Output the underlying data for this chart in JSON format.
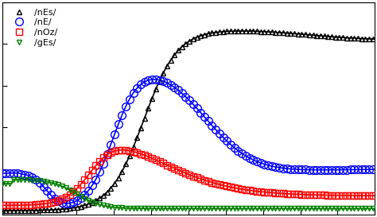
{
  "legend_labels": [
    "/nEs/",
    "/nE/",
    "/nOz/",
    "/gEs/"
  ],
  "colors": [
    "black",
    "blue",
    "red",
    "green"
  ],
  "markers": [
    "^",
    "o",
    "s",
    "v"
  ],
  "marker_sizes": [
    5,
    7,
    6,
    5
  ],
  "background_color": "#ffffff",
  "xlim": [
    0,
    100
  ],
  "ylim": [
    -0.02,
    1.0
  ],
  "marker_every": 2,
  "linewidth": 1.2
}
